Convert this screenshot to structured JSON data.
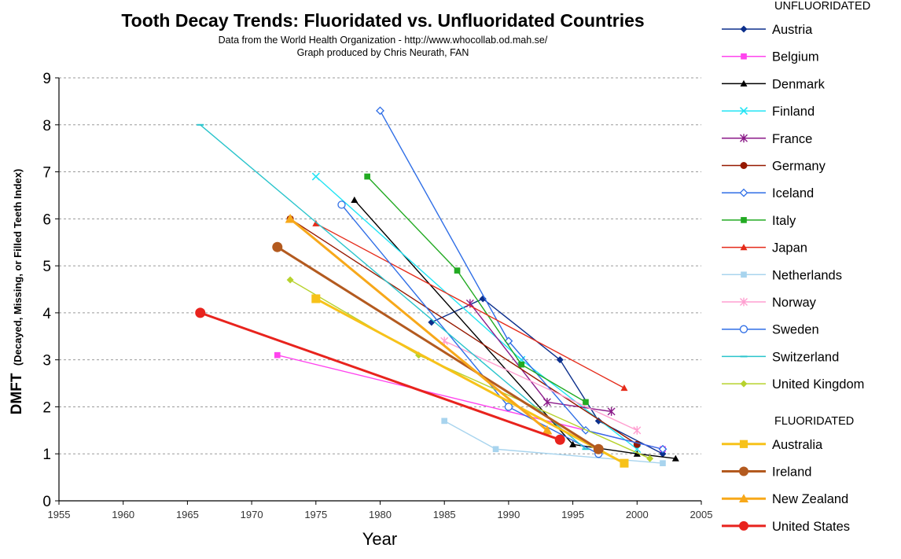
{
  "chart_data": {
    "type": "line",
    "title": "Tooth Decay Trends:  Fluoridated vs. Unfluoridated Countries",
    "subtitle_lines": [
      "Data from the World Health Organization - http://www.whocollab.od.mah.se/",
      "Graph produced by Chris Neurath, FAN"
    ],
    "xlabel": "Year",
    "ylabel_main": "DMFT",
    "ylabel_sub": "(Decayed, Missing, or Filled Teeth Index)",
    "xlim": [
      1955,
      2005
    ],
    "ylim": [
      0,
      9
    ],
    "x_ticks": [
      "1955",
      "1960",
      "1965",
      "1970",
      "1975",
      "1980",
      "1985",
      "1990",
      "1995",
      "2000",
      "2005"
    ],
    "y_ticks": [
      "0",
      "1",
      "2",
      "3",
      "4",
      "5",
      "6",
      "7",
      "8",
      "9"
    ],
    "grid": "horizontal-dashed",
    "legend_position": "right",
    "legend_groups": [
      {
        "heading": "UNFLUORIDATED",
        "series_start": 0,
        "series_end": 14
      },
      {
        "heading": "FLUORIDATED",
        "series_start": 14,
        "series_end": 18
      }
    ],
    "series": [
      {
        "name": "Austria",
        "color": "#0c2f8c",
        "marker": "diamond",
        "fluoridated": false,
        "points": [
          [
            1984,
            3.8
          ],
          [
            1988,
            4.3
          ],
          [
            1994,
            3.0
          ],
          [
            1997,
            1.7
          ],
          [
            2002,
            1.0
          ]
        ]
      },
      {
        "name": "Belgium",
        "color": "#ff44ee",
        "marker": "square",
        "fluoridated": false,
        "points": [
          [
            1972,
            3.1
          ],
          [
            2002,
            1.1
          ]
        ]
      },
      {
        "name": "Denmark",
        "color": "#000000",
        "marker": "triangle",
        "fluoridated": false,
        "points": [
          [
            1978,
            6.4
          ],
          [
            1995,
            1.2
          ],
          [
            2000,
            1.0
          ],
          [
            2003,
            0.9
          ]
        ]
      },
      {
        "name": "Finland",
        "color": "#22e4f4",
        "marker": "x",
        "fluoridated": false,
        "points": [
          [
            1975,
            6.9
          ],
          [
            1991,
            3.0
          ],
          [
            2000,
            1.1
          ]
        ]
      },
      {
        "name": "France",
        "color": "#8b1a89",
        "marker": "star",
        "fluoridated": false,
        "points": [
          [
            1987,
            4.2
          ],
          [
            1993,
            2.1
          ],
          [
            1998,
            1.9
          ]
        ]
      },
      {
        "name": "Germany",
        "color": "#961900",
        "marker": "circle",
        "fluoridated": false,
        "points": [
          [
            1973,
            6.0
          ],
          [
            2000,
            1.2
          ]
        ]
      },
      {
        "name": "Iceland",
        "color": "#2f6ee6",
        "marker": "open-diamond",
        "fluoridated": false,
        "points": [
          [
            1980,
            8.3
          ],
          [
            1990,
            3.4
          ],
          [
            1996,
            1.5
          ],
          [
            2002,
            1.1
          ]
        ]
      },
      {
        "name": "Italy",
        "color": "#22aa22",
        "marker": "square",
        "fluoridated": false,
        "points": [
          [
            1979,
            6.9
          ],
          [
            1986,
            4.9
          ],
          [
            1991,
            2.9
          ],
          [
            1996,
            2.1
          ]
        ]
      },
      {
        "name": "Japan",
        "color": "#e52b1a",
        "marker": "triangle",
        "fluoridated": false,
        "points": [
          [
            1975,
            5.9
          ],
          [
            1999,
            2.4
          ]
        ]
      },
      {
        "name": "Netherlands",
        "color": "#a8d4ee",
        "marker": "square",
        "fluoridated": false,
        "points": [
          [
            1985,
            1.7
          ],
          [
            1989,
            1.1
          ],
          [
            2002,
            0.8
          ]
        ]
      },
      {
        "name": "Norway",
        "color": "#ff9fd0",
        "marker": "star",
        "fluoridated": false,
        "points": [
          [
            1985,
            3.4
          ],
          [
            2000,
            1.5
          ]
        ]
      },
      {
        "name": "Sweden",
        "color": "#2f6ee6",
        "marker": "open-circle",
        "fluoridated": false,
        "points": [
          [
            1977,
            6.3
          ],
          [
            1990,
            2.0
          ],
          [
            1997,
            1.0
          ]
        ]
      },
      {
        "name": "Switzerland",
        "color": "#2ac4cc",
        "marker": "dash",
        "fluoridated": false,
        "points": [
          [
            1966,
            8.0
          ],
          [
            1996,
            1.1
          ]
        ]
      },
      {
        "name": "United Kingdom",
        "color": "#b7d22d",
        "marker": "diamond",
        "fluoridated": false,
        "points": [
          [
            1973,
            4.7
          ],
          [
            1983,
            3.1
          ],
          [
            2001,
            0.9
          ]
        ]
      },
      {
        "name": "Australia",
        "color": "#f7c21a",
        "marker": "square",
        "fluoridated": true,
        "points": [
          [
            1975,
            4.3
          ],
          [
            1999,
            0.8
          ]
        ]
      },
      {
        "name": "Ireland",
        "color": "#b35a1f",
        "marker": "circle",
        "fluoridated": true,
        "points": [
          [
            1972,
            5.4
          ],
          [
            1997,
            1.1
          ]
        ]
      },
      {
        "name": "New Zealand",
        "color": "#f7a81a",
        "marker": "triangle",
        "fluoridated": true,
        "points": [
          [
            1973,
            6.0
          ],
          [
            1993,
            1.5
          ]
        ]
      },
      {
        "name": "United States",
        "color": "#e8231d",
        "marker": "circle",
        "fluoridated": true,
        "points": [
          [
            1966,
            4.0
          ],
          [
            1994,
            1.3
          ]
        ]
      }
    ]
  }
}
